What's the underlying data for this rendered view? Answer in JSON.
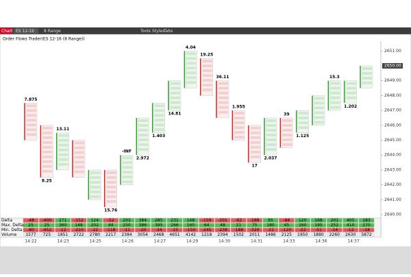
{
  "toolbar": {
    "tab": "Chart",
    "instrument": "ES 12-16",
    "period": "8 Range",
    "menus": [
      "Tools",
      "Styles",
      "Tabs"
    ]
  },
  "chart": {
    "title": "Order Flows Trader(ES 12-16 (8 Range))",
    "price_ticks": [
      {
        "value": 2640,
        "label": "2640.00"
      },
      {
        "value": 2641,
        "label": "2641.00"
      },
      {
        "value": 2642,
        "label": "2642.00"
      },
      {
        "value": 2643,
        "label": "2643.00"
      },
      {
        "value": 2644,
        "label": "2644.00"
      },
      {
        "value": 2645,
        "label": "2645.00"
      },
      {
        "value": 2646,
        "label": "2646.00"
      },
      {
        "value": 2647,
        "label": "2647.00"
      },
      {
        "value": 2648,
        "label": "2648.00"
      },
      {
        "value": 2649,
        "label": "2649.00"
      },
      {
        "value": 2650,
        "label": "2650.00"
      },
      {
        "value": 2651,
        "label": "2651.00"
      }
    ],
    "last_price": {
      "value": 2650,
      "label": "2650.00"
    },
    "times": [
      "14:22",
      "14:23",
      "14:25",
      "14:26",
      "14:27",
      "14:29",
      "14:30",
      "14:31",
      "14:33",
      "14:36",
      "14:37"
    ],
    "bars": [
      {
        "high": 2647.5,
        "low": 2645.0,
        "top": "7.875"
      },
      {
        "high": 2646.0,
        "low": 2642.5,
        "bottom": "8.25"
      },
      {
        "high": 2645.5,
        "low": 2643.0,
        "top": "13.11"
      },
      {
        "high": 2645.0,
        "low": 2642.5
      },
      {
        "high": 2643.0,
        "low": 2641.0
      },
      {
        "high": 2643.0,
        "low": 2640.5,
        "bottom": "15.76"
      },
      {
        "high": 2644.0,
        "low": 2642.0,
        "top": "-INF"
      },
      {
        "high": 2646.5,
        "low": 2644.0,
        "bottom": "2.972"
      },
      {
        "high": 2647.5,
        "low": 2645.5,
        "bottom": "1.403"
      },
      {
        "high": 2649.0,
        "low": 2647.0,
        "bottom": "14.81"
      },
      {
        "high": 2651.0,
        "low": 2648.5,
        "top": "4.04"
      },
      {
        "high": 2650.5,
        "low": 2648.0,
        "top": "19.25"
      },
      {
        "high": 2649.0,
        "low": 2646.5,
        "top": "36.11"
      },
      {
        "high": 2647.0,
        "low": 2645.0,
        "top": "1.955"
      },
      {
        "high": 2646.0,
        "low": 2643.5,
        "bottom": "17"
      },
      {
        "high": 2646.5,
        "low": 2644.0,
        "bottom": "2.037"
      },
      {
        "high": 2646.5,
        "low": 2644.5,
        "top": "39"
      },
      {
        "high": 2647.0,
        "low": 2645.5,
        "bottom": "1.125"
      },
      {
        "high": 2648.0,
        "low": 2646.0
      },
      {
        "high": 2649.0,
        "low": 2647.0,
        "top": "15.3"
      },
      {
        "high": 2649.0,
        "low": 2647.5,
        "bottom": "1.202"
      },
      {
        "high": 2650.0,
        "low": 2648.5
      }
    ],
    "table": {
      "labels": [
        "Delta",
        "Max. Delta",
        "Min. Delta",
        "Volume"
      ],
      "rows": [
        [
          -48,
          -400,
          271,
          -152,
          124,
          -52,
          203,
          384,
          285,
          231,
          148,
          -159,
          -201,
          -62,
          -188,
          95,
          -84,
          120,
          168,
          201,
          405,
          183
        ],
        [
          25,
          25,
          360,
          148,
          202,
          44,
          250,
          386,
          395,
          266,
          160,
          64,
          48,
          21,
          75,
          180,
          45,
          160,
          195,
          252,
          410,
          270
        ],
        [
          -80,
          -452,
          -12,
          -210,
          -22,
          -118,
          -11,
          -20,
          -34,
          -15,
          -150,
          -245,
          -238,
          -188,
          -320,
          -21,
          -120,
          -22,
          -51,
          -14,
          -12,
          -18
        ],
        [
          1577,
          725,
          1851,
          2722,
          2780,
          2217,
          2384,
          3054,
          2468,
          4651,
          4142,
          1218,
          2394,
          1502,
          2011,
          1486,
          2125,
          1950,
          1880,
          2260,
          2630,
          5872
        ]
      ]
    }
  }
}
